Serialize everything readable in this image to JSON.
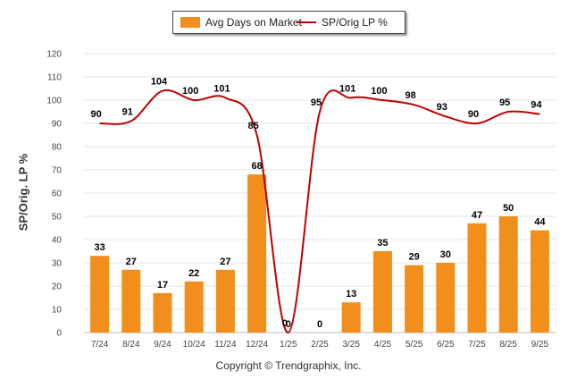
{
  "legend": {
    "bar_label": "Avg Days on Market",
    "line_label": "SP/Orig LP %"
  },
  "footer": {
    "copyright": "Copyright © Trendgraphix, Inc."
  },
  "colors": {
    "bar": "#f28e1b",
    "line": "#c00000"
  },
  "chart_data": {
    "type": "bar",
    "title": "",
    "xlabel": "",
    "ylabel": "SP/Orig. LP %",
    "ylim": [
      0,
      120
    ],
    "yticks": [
      0,
      10,
      20,
      30,
      40,
      50,
      60,
      70,
      80,
      90,
      100,
      110,
      120
    ],
    "grid": true,
    "legend_position": "top-center",
    "categories": [
      "7/24",
      "8/24",
      "9/24",
      "10/24",
      "11/24",
      "12/24",
      "1/25",
      "2/25",
      "3/25",
      "4/25",
      "5/25",
      "6/25",
      "7/25",
      "8/25",
      "9/25"
    ],
    "series": [
      {
        "name": "Avg Days on Market",
        "type": "bar",
        "values": [
          33,
          27,
          17,
          22,
          27,
          68,
          0,
          0,
          13,
          35,
          29,
          30,
          47,
          50,
          44
        ]
      },
      {
        "name": "SP/Orig LP %",
        "type": "line",
        "values": [
          90,
          91,
          104,
          100,
          101,
          85,
          0,
          95,
          101,
          100,
          98,
          93,
          90,
          95,
          94
        ]
      }
    ]
  }
}
